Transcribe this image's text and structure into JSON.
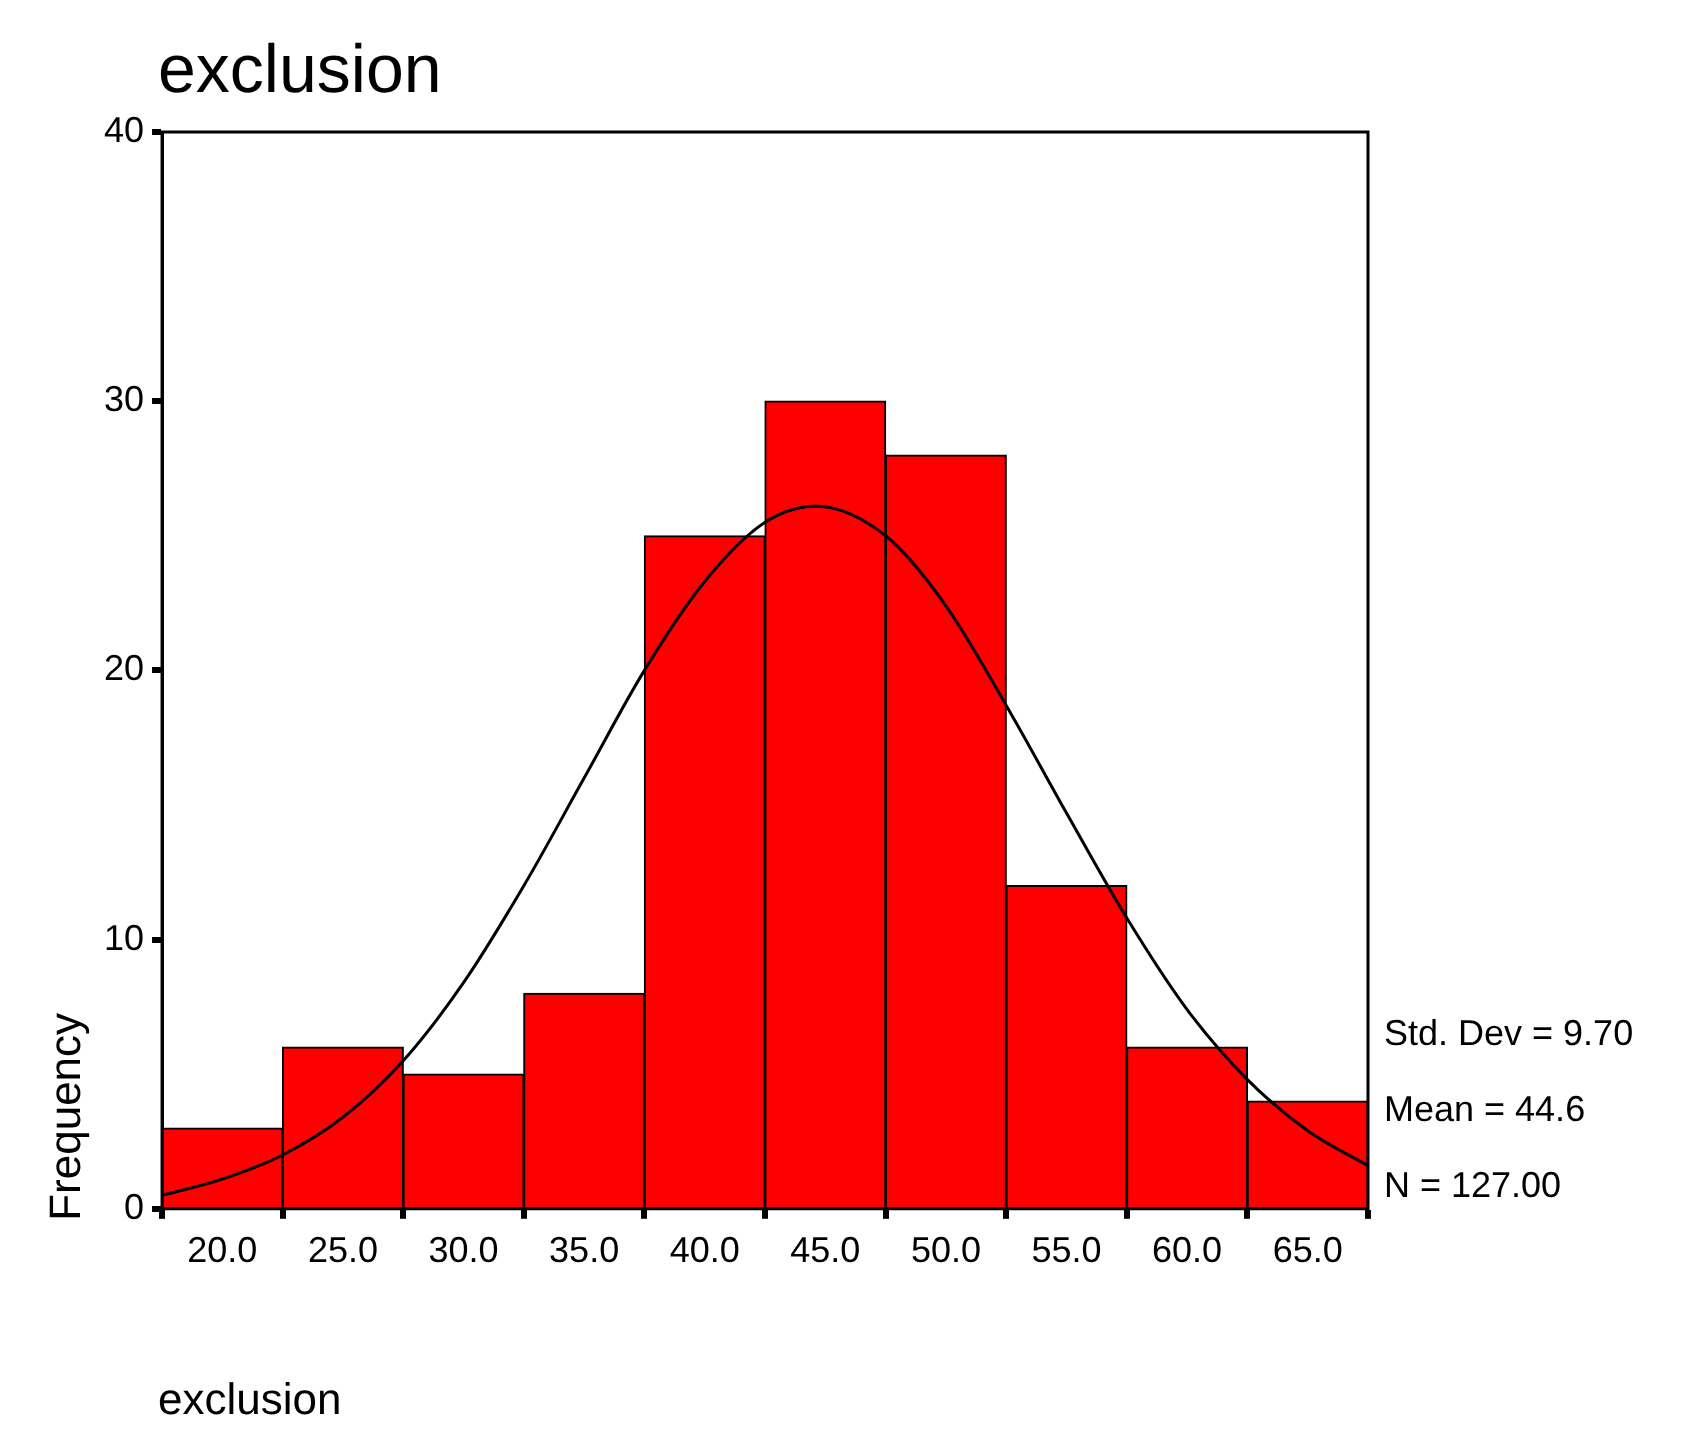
{
  "chart_data": {
    "type": "histogram",
    "title": "exclusion",
    "xlabel": "exclusion",
    "ylabel": "Frequency",
    "bins": [
      17.5,
      22.5,
      27.5,
      32.5,
      37.5,
      42.5,
      47.5,
      52.5,
      57.5,
      62.5,
      67.5
    ],
    "values": [
      3,
      6,
      5,
      8,
      25,
      30,
      28,
      12,
      6,
      4
    ],
    "color": "#ff0000",
    "series": [
      {
        "type": "line",
        "color": "#000000",
        "x": [
          17.5,
          20,
          22.5,
          25,
          27.5,
          30,
          32.5,
          35,
          37.5,
          40,
          42.5,
          44.6,
          47.5,
          50,
          52.5,
          55,
          57.5,
          60,
          62.5,
          65,
          67.5
        ],
        "values": [
          0.5,
          1.1,
          2.0,
          3.4,
          5.5,
          8.4,
          12.0,
          16.0,
          20.0,
          23.3,
          25.5,
          26.1,
          25.0,
          22.4,
          18.7,
          14.7,
          10.8,
          7.4,
          4.8,
          2.9,
          1.6
        ]
      }
    ],
    "xlim": [
      17.5,
      67.5
    ],
    "xticks": [
      {
        "value": 20,
        "label": "20.0"
      },
      {
        "value": 25,
        "label": "25.0"
      },
      {
        "value": 30,
        "label": "30.0"
      },
      {
        "value": 35,
        "label": "35.0"
      },
      {
        "value": 40,
        "label": "40.0"
      },
      {
        "value": 45,
        "label": "45.0"
      },
      {
        "value": 50,
        "label": "50.0"
      },
      {
        "value": 55,
        "label": "55.0"
      },
      {
        "value": 60,
        "label": "60.0"
      },
      {
        "value": 65,
        "label": "65.0"
      }
    ],
    "ylim": [
      0,
      40
    ],
    "yticks": [
      0,
      10,
      20,
      30,
      40
    ],
    "grid": false,
    "legend": false,
    "marker": "none",
    "annotations": [
      "Std. Dev = 9.70",
      "Mean = 44.6",
      "N = 127.00"
    ]
  }
}
